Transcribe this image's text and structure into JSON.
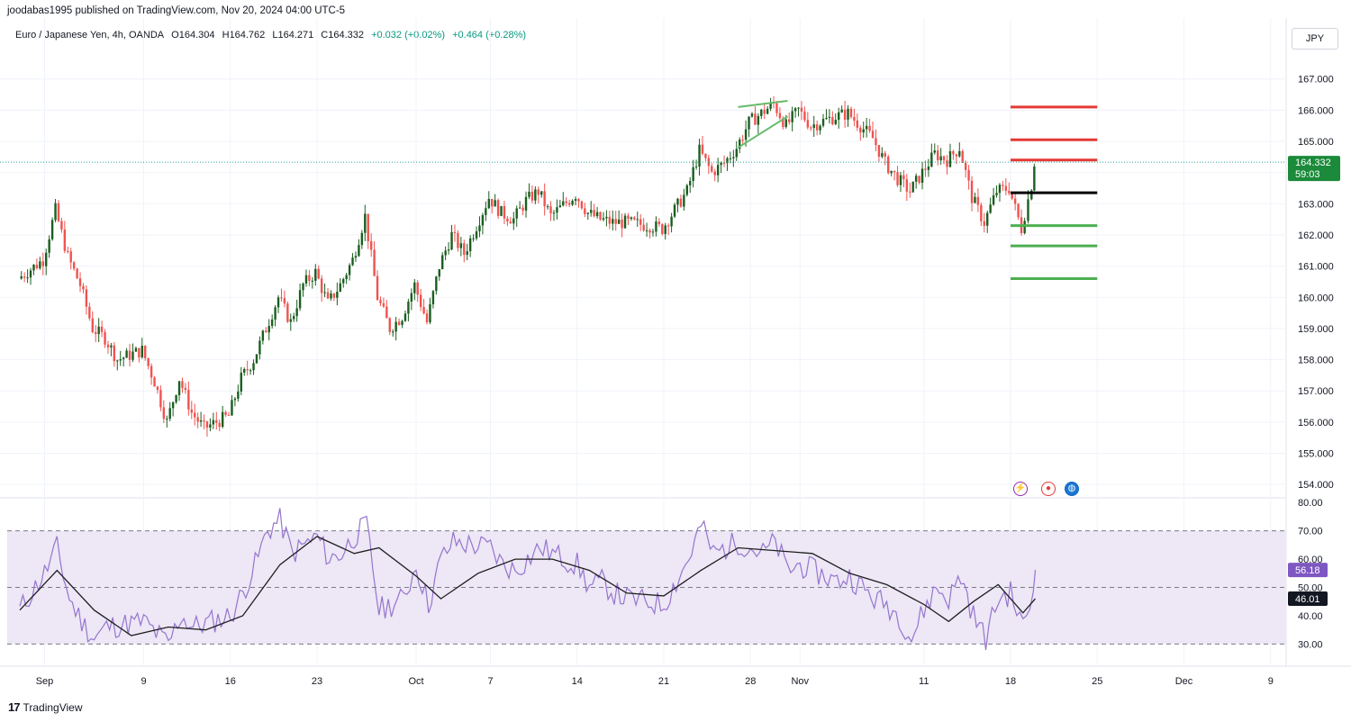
{
  "header": {
    "published_by": "joodabas1995 published on TradingView.com, Nov 20, 2024 04:00 UTC-5",
    "symbol": "Euro / Japanese Yen, 4h, OANDA",
    "open": "O164.304",
    "high": "H164.762",
    "low": "L164.271",
    "close": "C164.332",
    "change": "+0.032 (+0.02%)",
    "change2": "+0.464 (+0.28%)",
    "currency_button": "JPY"
  },
  "price_label": {
    "value": "164.332",
    "countdown": "59:03"
  },
  "rsi_labels": {
    "rsi": "56.18",
    "ma": "46.01"
  },
  "footer": {
    "brand": "TradingView"
  },
  "colors": {
    "up": "#26a69a",
    "up_dark": "#1b5e20",
    "down": "#ef5350",
    "rsi": "#9575cd",
    "rsi_band": "#ede7f6",
    "resistance": "#e53935",
    "support": "#4caf50",
    "pivot": "#000000",
    "price_tag": "#26a69a"
  },
  "chart_data": [
    {
      "type": "candlestick",
      "title": "Euro / Japanese Yen, 4h, OANDA",
      "x_ticks": [
        "Sep",
        "9",
        "16",
        "23",
        "Oct",
        "7",
        "14",
        "21",
        "28",
        "Nov",
        "11",
        "18",
        "25",
        "Dec",
        "9"
      ],
      "y_ticks": [
        "154.000",
        "155.000",
        "156.000",
        "157.000",
        "158.000",
        "159.000",
        "160.000",
        "161.000",
        "162.000",
        "163.000",
        "164.000",
        "165.000",
        "166.000",
        "167.000"
      ],
      "ylim": [
        153.6,
        167.8
      ],
      "price_path": [
        [
          "2024-08-30",
          160.6
        ],
        [
          "2024-09-01",
          161.2
        ],
        [
          "2024-09-02",
          162.8
        ],
        [
          "2024-09-03",
          161.3
        ],
        [
          "2024-09-04",
          160.4
        ],
        [
          "2024-09-05",
          159.0
        ],
        [
          "2024-09-06",
          158.7
        ],
        [
          "2024-09-07",
          158.0
        ],
        [
          "2024-09-09",
          158.3
        ],
        [
          "2024-09-10",
          157.3
        ],
        [
          "2024-09-11",
          156.0
        ],
        [
          "2024-09-12",
          157.4
        ],
        [
          "2024-09-13",
          156.3
        ],
        [
          "2024-09-14",
          155.8
        ],
        [
          "2024-09-16",
          156.2
        ],
        [
          "2024-09-17",
          157.4
        ],
        [
          "2024-09-18",
          158.0
        ],
        [
          "2024-09-19",
          159.0
        ],
        [
          "2024-09-20",
          160.0
        ],
        [
          "2024-09-21",
          159.2
        ],
        [
          "2024-09-22",
          160.4
        ],
        [
          "2024-09-23",
          160.8
        ],
        [
          "2024-09-24",
          159.8
        ],
        [
          "2024-09-25",
          160.4
        ],
        [
          "2024-09-26",
          161.2
        ],
        [
          "2024-09-27",
          162.6
        ],
        [
          "2024-09-28",
          160.0
        ],
        [
          "2024-09-29",
          159.0
        ],
        [
          "2024-09-30",
          159.4
        ],
        [
          "2024-10-01",
          160.4
        ],
        [
          "2024-10-02",
          159.2
        ],
        [
          "2024-10-03",
          161.0
        ],
        [
          "2024-10-04",
          162.0
        ],
        [
          "2024-10-05",
          161.4
        ],
        [
          "2024-10-07",
          163.2
        ],
        [
          "2024-10-08",
          162.7
        ],
        [
          "2024-10-09",
          162.5
        ],
        [
          "2024-10-10",
          163.1
        ],
        [
          "2024-10-11",
          163.4
        ],
        [
          "2024-10-12",
          162.6
        ],
        [
          "2024-10-14",
          163.3
        ],
        [
          "2024-10-15",
          162.7
        ],
        [
          "2024-10-16",
          162.5
        ],
        [
          "2024-10-17",
          162.4
        ],
        [
          "2024-10-18",
          162.4
        ],
        [
          "2024-10-20",
          162.3
        ],
        [
          "2024-10-21",
          162.2
        ],
        [
          "2024-10-22",
          162.8
        ],
        [
          "2024-10-23",
          163.4
        ],
        [
          "2024-10-24",
          164.7
        ],
        [
          "2024-10-25",
          164.0
        ],
        [
          "2024-10-26",
          164.3
        ],
        [
          "2024-10-27",
          164.8
        ],
        [
          "2024-10-28",
          165.6
        ],
        [
          "2024-10-29",
          165.9
        ],
        [
          "2024-10-30",
          166.2
        ],
        [
          "2024-10-31",
          165.5
        ],
        [
          "2024-11-01",
          166.0
        ],
        [
          "2024-11-02",
          165.5
        ],
        [
          "2024-11-04",
          165.8
        ],
        [
          "2024-11-05",
          165.9
        ],
        [
          "2024-11-06",
          165.5
        ],
        [
          "2024-11-07",
          165.1
        ],
        [
          "2024-11-08",
          164.3
        ],
        [
          "2024-11-09",
          163.8
        ],
        [
          "2024-11-10",
          163.4
        ],
        [
          "2024-11-11",
          164.0
        ],
        [
          "2024-11-12",
          164.6
        ],
        [
          "2024-11-13",
          164.4
        ],
        [
          "2024-11-14",
          164.8
        ],
        [
          "2024-11-15",
          163.2
        ],
        [
          "2024-11-16",
          162.4
        ],
        [
          "2024-11-17",
          163.4
        ],
        [
          "2024-11-18",
          163.5
        ],
        [
          "2024-11-19",
          162.2
        ],
        [
          "2024-11-19T20:00",
          163.6
        ],
        [
          "2024-11-20",
          164.332
        ]
      ],
      "levels": [
        {
          "price": 166.1,
          "role": "resistance"
        },
        {
          "price": 165.05,
          "role": "resistance"
        },
        {
          "price": 164.4,
          "role": "resistance"
        },
        {
          "price": 163.35,
          "role": "pivot"
        },
        {
          "price": 162.3,
          "role": "support"
        },
        {
          "price": 161.65,
          "role": "support"
        },
        {
          "price": 160.6,
          "role": "support"
        }
      ],
      "last_price": 164.332
    },
    {
      "type": "line",
      "y_ticks": [
        "30.00",
        "40.00",
        "50.00",
        "60.00",
        "70.00",
        "80.00"
      ],
      "ylim": [
        26,
        81
      ],
      "bands": [
        30,
        50,
        70
      ],
      "rsi_path": [
        [
          "2024-08-30",
          42
        ],
        [
          "2024-09-01",
          55
        ],
        [
          "2024-09-02",
          64
        ],
        [
          "2024-09-03",
          46
        ],
        [
          "2024-09-04",
          38
        ],
        [
          "2024-09-05",
          32
        ],
        [
          "2024-09-06",
          36
        ],
        [
          "2024-09-09",
          38
        ],
        [
          "2024-09-10",
          34
        ],
        [
          "2024-09-11",
          30
        ],
        [
          "2024-09-12",
          40
        ],
        [
          "2024-09-13",
          36
        ],
        [
          "2024-09-16",
          40
        ],
        [
          "2024-09-17",
          48
        ],
        [
          "2024-09-18",
          58
        ],
        [
          "2024-09-19",
          70
        ],
        [
          "2024-09-20",
          74
        ],
        [
          "2024-09-21",
          62
        ],
        [
          "2024-09-23",
          68
        ],
        [
          "2024-09-24",
          60
        ],
        [
          "2024-09-25",
          62
        ],
        [
          "2024-09-26",
          68
        ],
        [
          "2024-09-27",
          72
        ],
        [
          "2024-09-28",
          42
        ],
        [
          "2024-09-30",
          46
        ],
        [
          "2024-10-01",
          58
        ],
        [
          "2024-10-02",
          44
        ],
        [
          "2024-10-03",
          60
        ],
        [
          "2024-10-04",
          66
        ],
        [
          "2024-10-07",
          64
        ],
        [
          "2024-10-08",
          58
        ],
        [
          "2024-10-09",
          56
        ],
        [
          "2024-10-10",
          60
        ],
        [
          "2024-10-11",
          64
        ],
        [
          "2024-10-14",
          58
        ],
        [
          "2024-10-15",
          50
        ],
        [
          "2024-10-16",
          52
        ],
        [
          "2024-10-17",
          48
        ],
        [
          "2024-10-18",
          46
        ],
        [
          "2024-10-21",
          44
        ],
        [
          "2024-10-22",
          52
        ],
        [
          "2024-10-23",
          60
        ],
        [
          "2024-10-24",
          72
        ],
        [
          "2024-10-25",
          62
        ],
        [
          "2024-10-27",
          66
        ],
        [
          "2024-10-28",
          64
        ],
        [
          "2024-10-29",
          62
        ],
        [
          "2024-10-30",
          66
        ],
        [
          "2024-10-31",
          56
        ],
        [
          "2024-11-01",
          58
        ],
        [
          "2024-11-04",
          52
        ],
        [
          "2024-11-05",
          54
        ],
        [
          "2024-11-06",
          50
        ],
        [
          "2024-11-07",
          46
        ],
        [
          "2024-11-08",
          44
        ],
        [
          "2024-11-09",
          40
        ],
        [
          "2024-11-10",
          32
        ],
        [
          "2024-11-11",
          42
        ],
        [
          "2024-11-12",
          50
        ],
        [
          "2024-11-13",
          46
        ],
        [
          "2024-11-14",
          54
        ],
        [
          "2024-11-15",
          40
        ],
        [
          "2024-11-16",
          32
        ],
        [
          "2024-11-17",
          46
        ],
        [
          "2024-11-18",
          48
        ],
        [
          "2024-11-19",
          36
        ],
        [
          "2024-11-19T20:00",
          48
        ],
        [
          "2024-11-20",
          56.18
        ]
      ],
      "ma_path": [
        [
          "2024-08-30",
          42
        ],
        [
          "2024-09-02",
          56
        ],
        [
          "2024-09-05",
          42
        ],
        [
          "2024-09-08",
          33
        ],
        [
          "2024-09-11",
          36
        ],
        [
          "2024-09-14",
          35
        ],
        [
          "2024-09-17",
          40
        ],
        [
          "2024-09-20",
          58
        ],
        [
          "2024-09-23",
          68
        ],
        [
          "2024-09-26",
          62
        ],
        [
          "2024-09-28",
          64
        ],
        [
          "2024-10-01",
          54
        ],
        [
          "2024-10-03",
          46
        ],
        [
          "2024-10-06",
          55
        ],
        [
          "2024-10-09",
          60
        ],
        [
          "2024-10-12",
          60
        ],
        [
          "2024-10-15",
          56
        ],
        [
          "2024-10-18",
          48
        ],
        [
          "2024-10-21",
          47
        ],
        [
          "2024-10-24",
          56
        ],
        [
          "2024-10-27",
          64
        ],
        [
          "2024-10-30",
          63
        ],
        [
          "2024-11-02",
          62
        ],
        [
          "2024-11-05",
          55
        ],
        [
          "2024-11-08",
          51
        ],
        [
          "2024-11-11",
          44
        ],
        [
          "2024-11-13",
          38
        ],
        [
          "2024-11-15",
          45
        ],
        [
          "2024-11-17",
          51
        ],
        [
          "2024-11-19",
          41
        ],
        [
          "2024-11-20",
          46.01
        ]
      ],
      "last_rsi": 56.18,
      "last_ma": 46.01
    }
  ]
}
